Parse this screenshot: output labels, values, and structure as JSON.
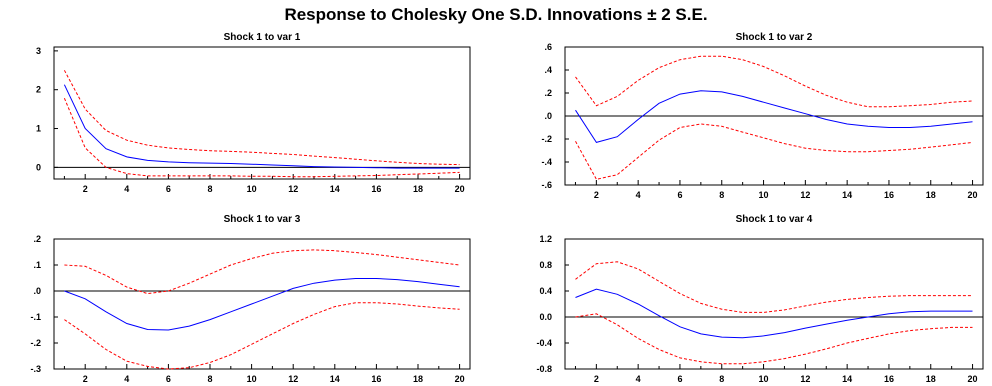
{
  "title": "Response to Cholesky One S.D. Innovations ± 2 S.E.",
  "colors": {
    "response": "#0000ff",
    "bands": "#ff0000",
    "zero_line": "#000000",
    "frame": "#000000"
  },
  "chart_data": [
    {
      "type": "line",
      "title": "Shock 1 to var 1",
      "x": [
        1,
        2,
        3,
        4,
        5,
        6,
        7,
        8,
        9,
        10,
        11,
        12,
        13,
        14,
        15,
        16,
        17,
        18,
        19,
        20
      ],
      "xticks": [
        2,
        4,
        6,
        8,
        10,
        12,
        14,
        16,
        18,
        20
      ],
      "yticks": [
        0,
        1,
        2,
        3
      ],
      "yticklabels": [
        "0",
        "1",
        "2",
        "3"
      ],
      "ylim": [
        -0.3,
        3.1
      ],
      "series": [
        {
          "role": "response",
          "values": [
            2.13,
            1.0,
            0.48,
            0.27,
            0.18,
            0.14,
            0.12,
            0.11,
            0.1,
            0.08,
            0.06,
            0.04,
            0.02,
            0.01,
            0.0,
            -0.01,
            -0.02,
            -0.02,
            -0.02,
            -0.02
          ]
        },
        {
          "role": "upper",
          "values": [
            2.5,
            1.5,
            0.95,
            0.7,
            0.57,
            0.5,
            0.46,
            0.43,
            0.41,
            0.39,
            0.36,
            0.33,
            0.29,
            0.25,
            0.21,
            0.17,
            0.13,
            0.1,
            0.08,
            0.07
          ]
        },
        {
          "role": "lower",
          "values": [
            1.78,
            0.5,
            0.0,
            -0.16,
            -0.22,
            -0.22,
            -0.22,
            -0.22,
            -0.22,
            -0.23,
            -0.23,
            -0.24,
            -0.24,
            -0.23,
            -0.22,
            -0.21,
            -0.19,
            -0.17,
            -0.15,
            -0.13
          ]
        }
      ]
    },
    {
      "type": "line",
      "title": "Shock 1 to var 2",
      "x": [
        1,
        2,
        3,
        4,
        5,
        6,
        7,
        8,
        9,
        10,
        11,
        12,
        13,
        14,
        15,
        16,
        17,
        18,
        19,
        20
      ],
      "xticks": [
        2,
        4,
        6,
        8,
        10,
        12,
        14,
        16,
        18,
        20
      ],
      "yticks": [
        -0.6,
        -0.4,
        -0.2,
        0.0,
        0.2,
        0.4,
        0.6
      ],
      "yticklabels": [
        "-.6",
        "-.4",
        "-.2",
        ".0",
        ".2",
        ".4",
        ".6"
      ],
      "ylim": [
        -0.6,
        0.6
      ],
      "series": [
        {
          "role": "response",
          "values": [
            0.05,
            -0.23,
            -0.18,
            -0.03,
            0.11,
            0.19,
            0.22,
            0.21,
            0.17,
            0.12,
            0.07,
            0.02,
            -0.03,
            -0.07,
            -0.09,
            -0.1,
            -0.1,
            -0.09,
            -0.07,
            -0.05
          ]
        },
        {
          "role": "upper",
          "values": [
            0.34,
            0.09,
            0.17,
            0.31,
            0.42,
            0.49,
            0.52,
            0.52,
            0.49,
            0.43,
            0.35,
            0.26,
            0.18,
            0.12,
            0.08,
            0.08,
            0.09,
            0.1,
            0.12,
            0.13
          ]
        },
        {
          "role": "lower",
          "values": [
            -0.22,
            -0.55,
            -0.51,
            -0.36,
            -0.21,
            -0.1,
            -0.07,
            -0.09,
            -0.14,
            -0.19,
            -0.24,
            -0.28,
            -0.3,
            -0.31,
            -0.31,
            -0.3,
            -0.29,
            -0.27,
            -0.25,
            -0.23
          ]
        }
      ]
    },
    {
      "type": "line",
      "title": "Shock 1 to var 3",
      "x": [
        1,
        2,
        3,
        4,
        5,
        6,
        7,
        8,
        9,
        10,
        11,
        12,
        13,
        14,
        15,
        16,
        17,
        18,
        19,
        20
      ],
      "xticks": [
        2,
        4,
        6,
        8,
        10,
        12,
        14,
        16,
        18,
        20
      ],
      "yticks": [
        -0.3,
        -0.2,
        -0.1,
        0.0,
        0.1,
        0.2
      ],
      "yticklabels": [
        "-.3",
        "-.2",
        "-.1",
        ".0",
        ".1",
        ".2"
      ],
      "ylim": [
        -0.3,
        0.2
      ],
      "series": [
        {
          "role": "response",
          "values": [
            0.0,
            -0.03,
            -0.08,
            -0.125,
            -0.148,
            -0.15,
            -0.135,
            -0.11,
            -0.08,
            -0.05,
            -0.02,
            0.01,
            0.03,
            0.042,
            0.048,
            0.048,
            0.044,
            0.036,
            0.026,
            0.016
          ]
        },
        {
          "role": "upper",
          "values": [
            0.1,
            0.095,
            0.06,
            0.015,
            -0.01,
            0.0,
            0.03,
            0.065,
            0.1,
            0.125,
            0.145,
            0.155,
            0.158,
            0.155,
            0.148,
            0.14,
            0.13,
            0.12,
            0.11,
            0.1
          ]
        },
        {
          "role": "lower",
          "values": [
            -0.11,
            -0.165,
            -0.225,
            -0.27,
            -0.29,
            -0.3,
            -0.295,
            -0.275,
            -0.245,
            -0.205,
            -0.165,
            -0.125,
            -0.09,
            -0.06,
            -0.045,
            -0.045,
            -0.05,
            -0.058,
            -0.065,
            -0.07
          ]
        }
      ]
    },
    {
      "type": "line",
      "title": "Shock 1 to var 4",
      "x": [
        1,
        2,
        3,
        4,
        5,
        6,
        7,
        8,
        9,
        10,
        11,
        12,
        13,
        14,
        15,
        16,
        17,
        18,
        19,
        20
      ],
      "xticks": [
        2,
        4,
        6,
        8,
        10,
        12,
        14,
        16,
        18,
        20
      ],
      "yticks": [
        -0.8,
        -0.4,
        0.0,
        0.4,
        0.8,
        1.2
      ],
      "yticklabels": [
        "-0.8",
        "-0.4",
        "0.0",
        "0.4",
        "0.8",
        "1.2"
      ],
      "ylim": [
        -0.8,
        1.2
      ],
      "series": [
        {
          "role": "response",
          "values": [
            0.3,
            0.43,
            0.35,
            0.2,
            0.02,
            -0.15,
            -0.26,
            -0.31,
            -0.32,
            -0.29,
            -0.24,
            -0.17,
            -0.11,
            -0.05,
            0.0,
            0.05,
            0.08,
            0.09,
            0.09,
            0.09
          ]
        },
        {
          "role": "upper",
          "values": [
            0.58,
            0.82,
            0.85,
            0.74,
            0.55,
            0.36,
            0.21,
            0.12,
            0.07,
            0.07,
            0.11,
            0.17,
            0.23,
            0.27,
            0.3,
            0.32,
            0.33,
            0.33,
            0.33,
            0.33
          ]
        },
        {
          "role": "lower",
          "values": [
            0.0,
            0.05,
            -0.12,
            -0.33,
            -0.5,
            -0.63,
            -0.69,
            -0.72,
            -0.72,
            -0.69,
            -0.64,
            -0.57,
            -0.49,
            -0.4,
            -0.33,
            -0.26,
            -0.21,
            -0.18,
            -0.16,
            -0.16
          ]
        }
      ]
    }
  ]
}
